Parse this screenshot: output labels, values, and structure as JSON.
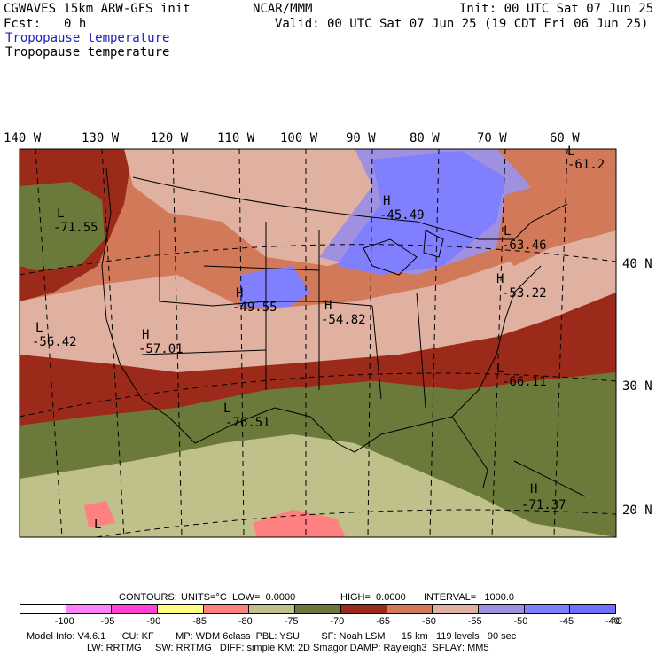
{
  "header": {
    "model_line": "CGWAVES 15km ARW-GFS init",
    "source": "NCAR/MMM",
    "init": "Init: 00 UTC Sat 07 Jun 25",
    "fcst_label": "Fcst:",
    "fcst_value": "0 h",
    "valid": "Valid: 00 UTC Sat 07 Jun 25 (19 CDT Fri 06 Jun 25)",
    "field_title_blue": "Tropopause temperature",
    "field_title_black": "Tropopause temperature"
  },
  "map": {
    "lon_labels": [
      "140 W",
      "130 W",
      "120 W",
      "110 W",
      "100 W",
      "90 W",
      "80 W",
      "70 W",
      "60 W"
    ],
    "lat_labels": [
      "40 N",
      "30 N",
      "20 N"
    ],
    "extrema": [
      {
        "type": "L",
        "value": "-71.55"
      },
      {
        "type": "H",
        "value": "-45.49"
      },
      {
        "type": "H",
        "value": "-49.55"
      },
      {
        "type": "H",
        "value": "-54.82"
      },
      {
        "type": "L",
        "value": "-56.42"
      },
      {
        "type": "H",
        "value": "-57.01"
      },
      {
        "type": "L",
        "value": "-63.46"
      },
      {
        "type": "H",
        "value": "-53.22"
      },
      {
        "type": "L",
        "value": "-66.11"
      },
      {
        "type": "L",
        "value": "-76.51"
      },
      {
        "type": "H",
        "value": "-71.37"
      },
      {
        "type": "L",
        "value": "-61.2"
      },
      {
        "type": "L",
        "value": ""
      }
    ]
  },
  "contour_info": {
    "contours_label": "CONTOURS:",
    "units": "UNITS=°C",
    "low": "LOW=  0.0000",
    "high": "HIGH=  0.0000",
    "interval": "INTERVAL=   1000.0"
  },
  "colorbar": {
    "labels": [
      "-100",
      "-95",
      "-90",
      "-85",
      "-80",
      "-75",
      "-70",
      "-65",
      "-60",
      "-55",
      "-50",
      "-45",
      "-40"
    ],
    "unit": "°C",
    "colors": [
      "#ffffff",
      "#ff80ff",
      "#ff40d8",
      "#ffff80",
      "#ff8080",
      "#c0c08a",
      "#6b7a3a",
      "#9b2a1a",
      "#d2795a",
      "#e0b0a0",
      "#a090e0",
      "#8080ff",
      "#7070ff"
    ]
  },
  "model_info": {
    "line1": "Model Info: V4.6.1      CU: KF        MP: WDM 6class  PBL: YSU        SF: Noah LSM      15 km   119 levels   90 sec",
    "line2": "LW: RRTMG     SW: RRTMG   DIFF: simple KM: 2D Smagor DAMP: Rayleigh3  SFLAY: MM5"
  }
}
